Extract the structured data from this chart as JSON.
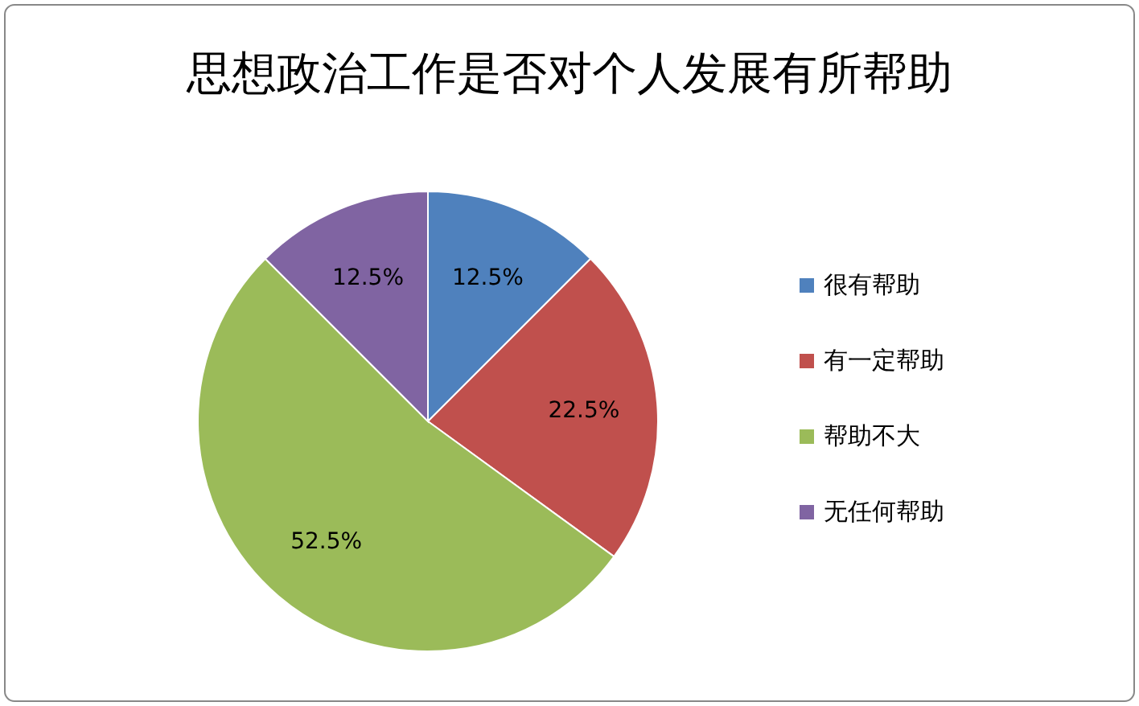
{
  "chart_data": {
    "type": "pie",
    "title": "思想政治工作是否对个人发展有所帮助",
    "categories": [
      "很有帮助",
      "有一定帮助",
      "帮助不大",
      "无任何帮助"
    ],
    "values": [
      12.5,
      22.5,
      52.5,
      12.5
    ],
    "value_labels": [
      "12.5%",
      "22.5%",
      "52.5%",
      "12.5%"
    ],
    "colors": [
      "#4f81bd",
      "#c0504d",
      "#9bbb59",
      "#8064a2"
    ],
    "legend": "right"
  }
}
